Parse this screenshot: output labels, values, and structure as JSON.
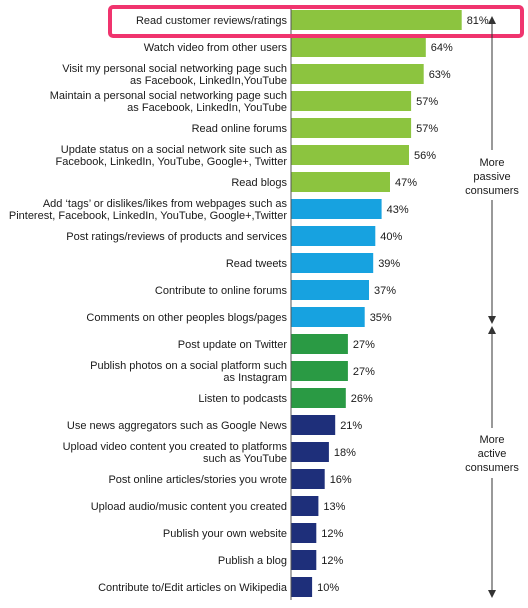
{
  "chart_data": {
    "type": "bar",
    "orientation": "horizontal",
    "value_suffix": "%",
    "xlim": [
      0,
      100
    ],
    "grid": false,
    "items": [
      {
        "label": [
          "Read customer reviews/ratings"
        ],
        "value": 81,
        "group": "green"
      },
      {
        "label": [
          "Watch video from other users"
        ],
        "value": 64,
        "group": "green"
      },
      {
        "label": [
          "Visit my personal social networking page such",
          "as Facebook, LinkedIn,YouTube"
        ],
        "value": 63,
        "group": "green"
      },
      {
        "label": [
          "Maintain a personal social networking page such",
          "as Facebook, LinkedIn, YouTube"
        ],
        "value": 57,
        "group": "green"
      },
      {
        "label": [
          "Read online forums"
        ],
        "value": 57,
        "group": "green"
      },
      {
        "label": [
          "Update status on a social network site such as",
          "Facebook, LinkedIn, YouTube, Google+, Twitter"
        ],
        "value": 56,
        "group": "green"
      },
      {
        "label": [
          "Read blogs"
        ],
        "value": 47,
        "group": "green"
      },
      {
        "label": [
          "Add ‘tags’ or dislikes/likes from webpages such as",
          "Pinterest, Facebook, LinkedIn, YouTube, Google+,Twitter"
        ],
        "value": 43,
        "group": "blue"
      },
      {
        "label": [
          "Post ratings/reviews of products and services"
        ],
        "value": 40,
        "group": "blue"
      },
      {
        "label": [
          "Read tweets"
        ],
        "value": 39,
        "group": "blue"
      },
      {
        "label": [
          "Contribute to online forums"
        ],
        "value": 37,
        "group": "blue"
      },
      {
        "label": [
          "Comments on other peoples blogs/pages"
        ],
        "value": 35,
        "group": "blue"
      },
      {
        "label": [
          "Post update on Twitter"
        ],
        "value": 27,
        "group": "darkgreen"
      },
      {
        "label": [
          "Publish photos on a social platform such",
          "as Instagram"
        ],
        "value": 27,
        "group": "darkgreen"
      },
      {
        "label": [
          "Listen to podcasts"
        ],
        "value": 26,
        "group": "darkgreen"
      },
      {
        "label": [
          "Use news aggregators such as Google News"
        ],
        "value": 21,
        "group": "navy"
      },
      {
        "label": [
          "Upload video content you created to platforms",
          "such as YouTube"
        ],
        "value": 18,
        "group": "navy"
      },
      {
        "label": [
          "Post online articles/stories you wrote"
        ],
        "value": 16,
        "group": "navy"
      },
      {
        "label": [
          "Upload audio/music content you created"
        ],
        "value": 13,
        "group": "navy"
      },
      {
        "label": [
          "Publish your own website"
        ],
        "value": 12,
        "group": "navy"
      },
      {
        "label": [
          "Publish a blog"
        ],
        "value": 12,
        "group": "navy"
      },
      {
        "label": [
          "Contribute to/Edit articles on Wikipedia"
        ],
        "value": 10,
        "group": "navy"
      }
    ],
    "highlighted_item": 0,
    "annotations": {
      "top": [
        "More",
        "passive",
        "consumers"
      ],
      "bottom": [
        "More",
        "active",
        "consumers"
      ]
    }
  },
  "colors": {
    "green": "#8cc43f",
    "blue": "#17a2e0",
    "darkgreen": "#2a9a44",
    "navy": "#1e2f7a",
    "highlight": "#f0346e",
    "axis": "#555555",
    "arrow": "#333333"
  }
}
